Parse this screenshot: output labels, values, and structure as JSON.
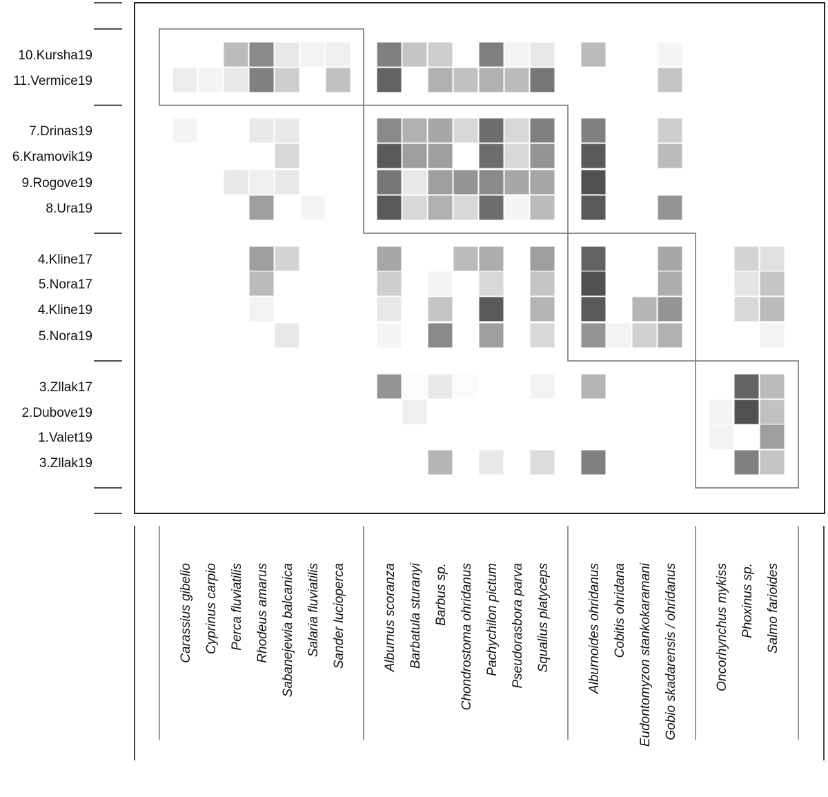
{
  "chart_data": {
    "type": "heatmap",
    "title": "",
    "xlabel": "",
    "ylabel": "",
    "value_range": [
      0,
      1
    ],
    "color_low": "#ffffff",
    "color_high": "#3c3c3c",
    "rows": [
      "10.Kursha19",
      "11.Vermice19",
      "7.Drinas19",
      "6.Kramovik19",
      "9.Rogove19",
      "8.Ura19",
      "4.Kline17",
      "5.Nora17",
      "4.Kline19",
      "5.Nora19",
      "3.Zllak17",
      "2.Dubove19",
      "1.Valet19",
      "3.Zllak19"
    ],
    "row_groups": [
      2,
      4,
      4,
      4
    ],
    "columns": [
      "Carassius gibelio",
      "Cyprinus carpio",
      "Perca fluviatilis",
      "Rhodeus  amarus",
      "Sabanejewia  balcanica",
      "Salaria fluviatilis",
      "Sander lucioperca",
      "Alburnus scoranza",
      "Barbatula sturanyi",
      "Barbus sp.",
      "Chondrostoma ohridanus",
      "Pachychilon pictum",
      "Pseudorasbora parva",
      "Squalius platyceps",
      "Alburnoides ohridanus",
      "Cobitis ohridana",
      "Eudontomyzon stankokaramani",
      "Gobio skadarensis / ohridanus",
      "Oncorhynchus mykiss",
      "Phoxinus sp.",
      "Salmo farioides"
    ],
    "column_groups": [
      7,
      7,
      4,
      3
    ],
    "values": [
      [
        0,
        0,
        0.35,
        0.6,
        0.12,
        0.06,
        0.08,
        0.65,
        0.3,
        0.25,
        0,
        0.65,
        0.06,
        0.12,
        0.35,
        0,
        0,
        0.05,
        0,
        0,
        0
      ],
      [
        0.1,
        0.05,
        0.12,
        0.65,
        0.25,
        0,
        0.32,
        0.8,
        0,
        0.4,
        0.32,
        0.4,
        0.35,
        0.7,
        0,
        0,
        0,
        0.3,
        0,
        0,
        0
      ],
      [
        0.05,
        0,
        0,
        0.12,
        0.12,
        0,
        0,
        0.6,
        0.4,
        0.45,
        0.2,
        0.75,
        0.2,
        0.65,
        0.65,
        0,
        0,
        0.25,
        0,
        0,
        0
      ],
      [
        0,
        0,
        0,
        0,
        0.2,
        0,
        0,
        0.85,
        0.5,
        0.5,
        0,
        0.75,
        0.2,
        0.55,
        0.85,
        0,
        0,
        0.35,
        0,
        0,
        0
      ],
      [
        0,
        0,
        0.12,
        0.08,
        0.12,
        0,
        0,
        0.7,
        0.12,
        0.5,
        0.55,
        0.6,
        0.45,
        0.45,
        0.9,
        0,
        0,
        0,
        0,
        0,
        0
      ],
      [
        0,
        0,
        0,
        0.5,
        0,
        0.05,
        0,
        0.85,
        0.2,
        0.4,
        0.2,
        0.75,
        0.05,
        0.35,
        0.85,
        0,
        0,
        0.55,
        0,
        0,
        0
      ],
      [
        0,
        0,
        0,
        0.5,
        0.22,
        0,
        0,
        0.45,
        0,
        0,
        0.35,
        0.42,
        0,
        0.5,
        0.8,
        0,
        0,
        0.45,
        0,
        0.22,
        0.16
      ],
      [
        0,
        0,
        0,
        0.35,
        0,
        0,
        0,
        0.25,
        0,
        0.06,
        0,
        0.2,
        0,
        0.3,
        0.9,
        0,
        0,
        0.42,
        0,
        0.14,
        0.3
      ],
      [
        0,
        0,
        0,
        0.06,
        0,
        0,
        0,
        0.12,
        0,
        0.3,
        0,
        0.85,
        0,
        0.38,
        0.85,
        0,
        0.38,
        0.55,
        0,
        0.2,
        0.35
      ],
      [
        0,
        0,
        0,
        0,
        0.12,
        0,
        0,
        0.05,
        0,
        0.6,
        0,
        0.5,
        0,
        0.2,
        0.55,
        0.06,
        0.24,
        0.4,
        0,
        0,
        0.06
      ],
      [
        0,
        0,
        0,
        0,
        0,
        0,
        0,
        0.55,
        0.02,
        0.12,
        0.02,
        0,
        0,
        0.06,
        0.38,
        0,
        0,
        0,
        0,
        0.8,
        0.35
      ],
      [
        0,
        0,
        0,
        0,
        0,
        0,
        0,
        0,
        0.08,
        0,
        0,
        0,
        0,
        0,
        0,
        0,
        0,
        0,
        0.06,
        0.9,
        0.32
      ],
      [
        0,
        0,
        0,
        0,
        0,
        0,
        0,
        0,
        0,
        0,
        0,
        0,
        0,
        0,
        0,
        0,
        0,
        0,
        0.06,
        0,
        0.5
      ],
      [
        0,
        0,
        0,
        0,
        0,
        0,
        0,
        0,
        0,
        0.38,
        0,
        0.12,
        0,
        0.18,
        0.65,
        0,
        0,
        0,
        0,
        0.65,
        0.3
      ]
    ]
  }
}
